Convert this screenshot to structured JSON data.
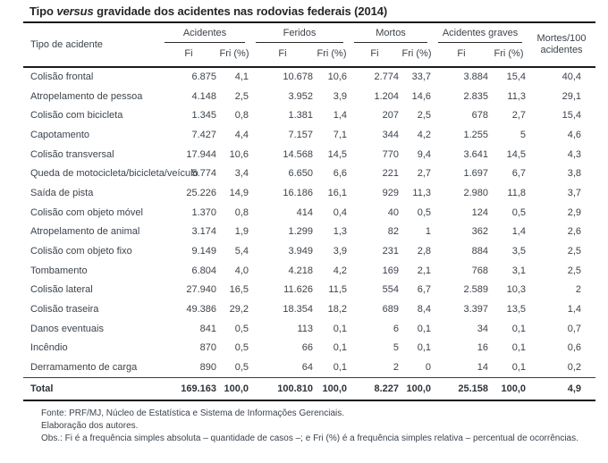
{
  "title": {
    "prefix": "Tipo ",
    "italic": "versus",
    "suffix": " gravidade dos acidentes nas rodovias federais (2014)"
  },
  "table": {
    "row_header": "Tipo de acidente",
    "groups": [
      {
        "label": "Acidentes"
      },
      {
        "label": "Feridos"
      },
      {
        "label": "Mortos"
      },
      {
        "label": "Acidentes graves"
      }
    ],
    "subheaders": {
      "fi": "Fi",
      "fri": "Fri (%)"
    },
    "last_column_header": "Mortes/100 acidentes",
    "rows": [
      {
        "label": "Colisão frontal",
        "values": [
          "6.875",
          "4,1",
          "10.678",
          "10,6",
          "2.774",
          "33,7",
          "3.884",
          "15,4",
          "40,4"
        ]
      },
      {
        "label": "Atropelamento de pessoa",
        "values": [
          "4.148",
          "2,5",
          "3.952",
          "3,9",
          "1.204",
          "14,6",
          "2.835",
          "11,3",
          "29,1"
        ]
      },
      {
        "label": "Colisão com bicicleta",
        "values": [
          "1.345",
          "0,8",
          "1.381",
          "1,4",
          "207",
          "2,5",
          "678",
          "2,7",
          "15,4"
        ]
      },
      {
        "label": "Capotamento",
        "values": [
          "7.427",
          "4,4",
          "7.157",
          "7,1",
          "344",
          "4,2",
          "1.255",
          "5",
          "4,6"
        ]
      },
      {
        "label": "Colisão transversal",
        "values": [
          "17.944",
          "10,6",
          "14.568",
          "14,5",
          "770",
          "9,4",
          "3.641",
          "14,5",
          "4,3"
        ]
      },
      {
        "label": "Queda de motocicleta/bicicleta/veículo",
        "values": [
          "5.774",
          "3,4",
          "6.650",
          "6,6",
          "221",
          "2,7",
          "1.697",
          "6,7",
          "3,8"
        ]
      },
      {
        "label": "Saída de pista",
        "values": [
          "25.226",
          "14,9",
          "16.186",
          "16,1",
          "929",
          "11,3",
          "2.980",
          "11,8",
          "3,7"
        ]
      },
      {
        "label": "Colisão com objeto móvel",
        "values": [
          "1.370",
          "0,8",
          "414",
          "0,4",
          "40",
          "0,5",
          "124",
          "0,5",
          "2,9"
        ]
      },
      {
        "label": "Atropelamento de animal",
        "values": [
          "3.174",
          "1,9",
          "1.299",
          "1,3",
          "82",
          "1",
          "362",
          "1,4",
          "2,6"
        ]
      },
      {
        "label": "Colisão com objeto fixo",
        "values": [
          "9.149",
          "5,4",
          "3.949",
          "3,9",
          "231",
          "2,8",
          "884",
          "3,5",
          "2,5"
        ]
      },
      {
        "label": "Tombamento",
        "values": [
          "6.804",
          "4,0",
          "4.218",
          "4,2",
          "169",
          "2,1",
          "768",
          "3,1",
          "2,5"
        ]
      },
      {
        "label": "Colisão lateral",
        "values": [
          "27.940",
          "16,5",
          "11.626",
          "11,5",
          "554",
          "6,7",
          "2.589",
          "10,3",
          "2"
        ]
      },
      {
        "label": "Colisão traseira",
        "values": [
          "49.386",
          "29,2",
          "18.354",
          "18,2",
          "689",
          "8,4",
          "3.397",
          "13,5",
          "1,4"
        ]
      },
      {
        "label": "Danos eventuais",
        "values": [
          "841",
          "0,5",
          "113",
          "0,1",
          "6",
          "0,1",
          "34",
          "0,1",
          "0,7"
        ]
      },
      {
        "label": "Incêndio",
        "values": [
          "870",
          "0,5",
          "66",
          "0,1",
          "5",
          "0,1",
          "16",
          "0,1",
          "0,6"
        ]
      },
      {
        "label": "Derramamento de carga",
        "values": [
          "890",
          "0,5",
          "64",
          "0,1",
          "2",
          "0",
          "14",
          "0,1",
          "0,2"
        ]
      },
      {
        "label": "Total",
        "total": true,
        "values": [
          "169.163",
          "100,0",
          "100.810",
          "100,0",
          "8.227",
          "100,0",
          "25.158",
          "100,0",
          "4,9"
        ]
      }
    ]
  },
  "footer": {
    "source": "Fonte: PRF/MJ, Núcleo de Estatística e Sistema de Informações Gerenciais.",
    "elaboration": "Elaboração dos autores.",
    "note": "Obs.: Fi é a frequência simples absoluta – quantidade de casos –; e Fri (%) é a frequência simples relativa – percentual de ocorrências."
  },
  "colors": {
    "text": "#3c434b",
    "title": "#262626",
    "rule": "#1b1b1b"
  }
}
